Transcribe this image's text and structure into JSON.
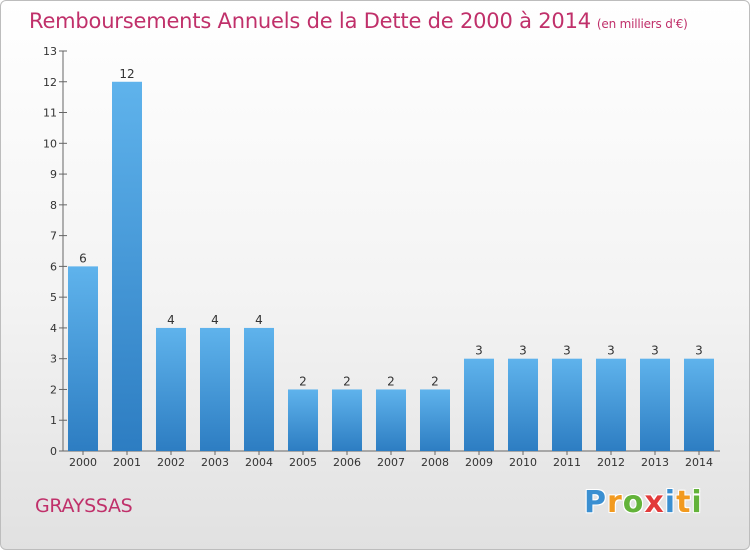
{
  "title": "Remboursements Annuels de la Dette de 2000 à 2014",
  "subtitle": "(en milliers d'€)",
  "commune": "GRAYSSAS",
  "logo": {
    "letters": [
      {
        "char": "P",
        "color": "#3a8fd1"
      },
      {
        "char": "r",
        "color": "#f29a1f"
      },
      {
        "char": "o",
        "color": "#63b33a"
      },
      {
        "char": "x",
        "color": "#e23a3a"
      },
      {
        "char": "i",
        "color": "#3a8fd1"
      },
      {
        "char": "t",
        "color": "#f29a1f"
      },
      {
        "char": "i",
        "color": "#63b33a"
      }
    ]
  },
  "colors": {
    "bar_top": "#5fb3ec",
    "bar_bottom": "#2d7dc2",
    "title": "#c0306a"
  },
  "chart_data": {
    "type": "bar",
    "title": "Remboursements Annuels de la Dette de 2000 à 2014",
    "xlabel": "",
    "ylabel": "",
    "categories": [
      "2000",
      "2001",
      "2002",
      "2003",
      "2004",
      "2005",
      "2006",
      "2007",
      "2008",
      "2009",
      "2010",
      "2011",
      "2012",
      "2013",
      "2014"
    ],
    "values": [
      6,
      12,
      4,
      4,
      4,
      2,
      2,
      2,
      2,
      3,
      3,
      3,
      3,
      3,
      3
    ],
    "yticks": [
      0,
      1,
      2,
      3,
      4,
      5,
      6,
      7,
      8,
      9,
      10,
      11,
      12,
      13
    ],
    "ylim": [
      0,
      13
    ],
    "grid": false,
    "legend": "none"
  }
}
